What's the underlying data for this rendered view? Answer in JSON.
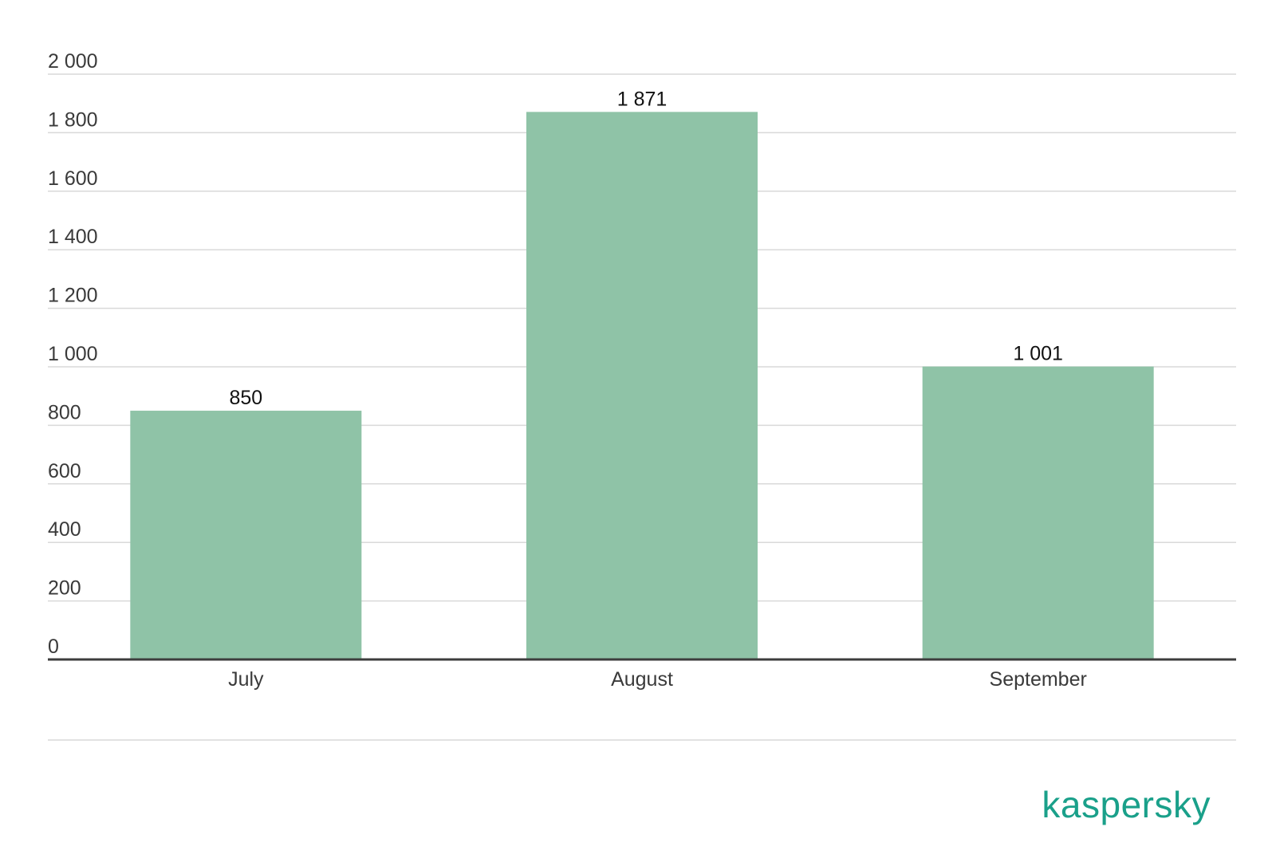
{
  "chart_data": {
    "type": "bar",
    "categories": [
      "July",
      "August",
      "September"
    ],
    "values": [
      850,
      1871,
      1001
    ],
    "data_labels": [
      "850",
      "1 871",
      "1 001"
    ],
    "title": "",
    "xlabel": "",
    "ylabel": "",
    "ylim": [
      0,
      2000
    ],
    "yticks": [
      0,
      200,
      400,
      600,
      800,
      1000,
      1200,
      1400,
      1600,
      1800,
      2000
    ],
    "ytick_labels": [
      "0",
      "200",
      "400",
      "600",
      "800",
      "1 000",
      "1 200",
      "1 400",
      "1 600",
      "1 800",
      "2 000"
    ],
    "grid": true,
    "legend": "none",
    "bar_color": "#8fc3a7"
  },
  "brand": {
    "name": "kaspersky",
    "color": "#1aa08a"
  }
}
